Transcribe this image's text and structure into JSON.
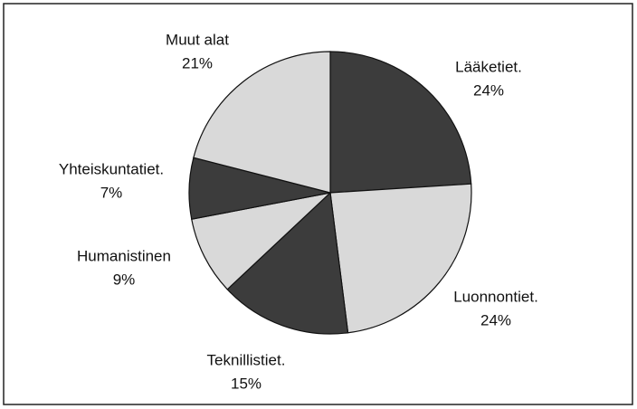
{
  "chart_data": {
    "type": "pie",
    "categories": [
      "Lääketiet.",
      "Luonnontiet.",
      "Teknillistiet.",
      "Humanistinen",
      "Yhteiskuntatiet.",
      "Muut alat"
    ],
    "values": [
      24,
      24,
      15,
      9,
      7,
      21
    ],
    "value_labels": [
      "24%",
      "24%",
      "15%",
      "9%",
      "7%",
      "21%"
    ],
    "colors": [
      "#3c3c3c",
      "#d9d9d9",
      "#3c3c3c",
      "#d9d9d9",
      "#3c3c3c",
      "#d9d9d9"
    ]
  }
}
